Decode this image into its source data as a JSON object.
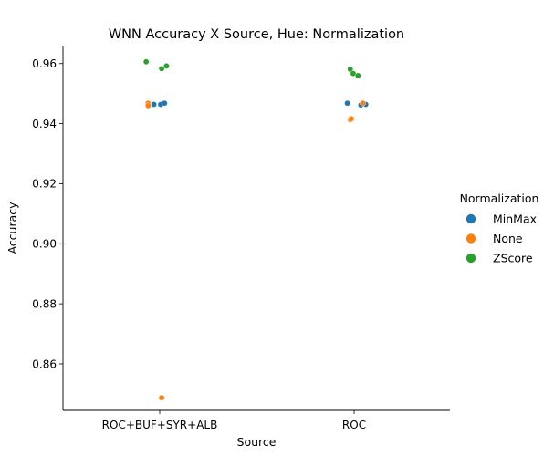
{
  "chart_data": {
    "type": "scatter",
    "subtype": "strip",
    "title": "WNN Accuracy X Source, Hue: Normalization",
    "xlabel": "Source",
    "ylabel": "Accuracy",
    "categories": [
      "ROC+BUF+SYR+ALB",
      "ROC"
    ],
    "ylim": [
      0.8445,
      0.966
    ],
    "yticks": [
      0.86,
      0.88,
      0.9,
      0.92,
      0.94,
      0.96
    ],
    "ytick_labels": [
      "0.86",
      "0.88",
      "0.90",
      "0.92",
      "0.94",
      "0.96"
    ],
    "grid": false,
    "legend": {
      "title": "Normalization",
      "placement": "center-right, outside plot"
    },
    "series": [
      {
        "name": "MinMax",
        "color": "#1f77b4",
        "points": [
          {
            "category": "ROC+BUF+SYR+ALB",
            "jitter": -0.06,
            "y": 0.9464
          },
          {
            "category": "ROC+BUF+SYR+ALB",
            "jitter": 0.01,
            "y": 0.9464
          },
          {
            "category": "ROC+BUF+SYR+ALB",
            "jitter": 0.05,
            "y": 0.9468
          },
          {
            "category": "ROC",
            "jitter": -0.07,
            "y": 0.9468
          },
          {
            "category": "ROC",
            "jitter": 0.07,
            "y": 0.9462
          },
          {
            "category": "ROC",
            "jitter": 0.12,
            "y": 0.9464
          }
        ]
      },
      {
        "name": "None",
        "color": "#ff7f0e",
        "points": [
          {
            "category": "ROC+BUF+SYR+ALB",
            "jitter": -0.12,
            "y": 0.9468
          },
          {
            "category": "ROC+BUF+SYR+ALB",
            "jitter": -0.12,
            "y": 0.946
          },
          {
            "category": "ROC+BUF+SYR+ALB",
            "jitter": 0.02,
            "y": 0.8487
          },
          {
            "category": "ROC",
            "jitter": -0.04,
            "y": 0.9413
          },
          {
            "category": "ROC",
            "jitter": -0.03,
            "y": 0.9416
          },
          {
            "category": "ROC",
            "jitter": 0.09,
            "y": 0.9468
          }
        ]
      },
      {
        "name": "ZScore",
        "color": "#2ca02c",
        "points": [
          {
            "category": "ROC+BUF+SYR+ALB",
            "jitter": -0.14,
            "y": 0.9606
          },
          {
            "category": "ROC+BUF+SYR+ALB",
            "jitter": 0.02,
            "y": 0.9583
          },
          {
            "category": "ROC+BUF+SYR+ALB",
            "jitter": 0.07,
            "y": 0.9592
          },
          {
            "category": "ROC",
            "jitter": -0.04,
            "y": 0.9581
          },
          {
            "category": "ROC",
            "jitter": -0.01,
            "y": 0.9567
          },
          {
            "category": "ROC",
            "jitter": 0.04,
            "y": 0.956
          }
        ]
      }
    ]
  }
}
